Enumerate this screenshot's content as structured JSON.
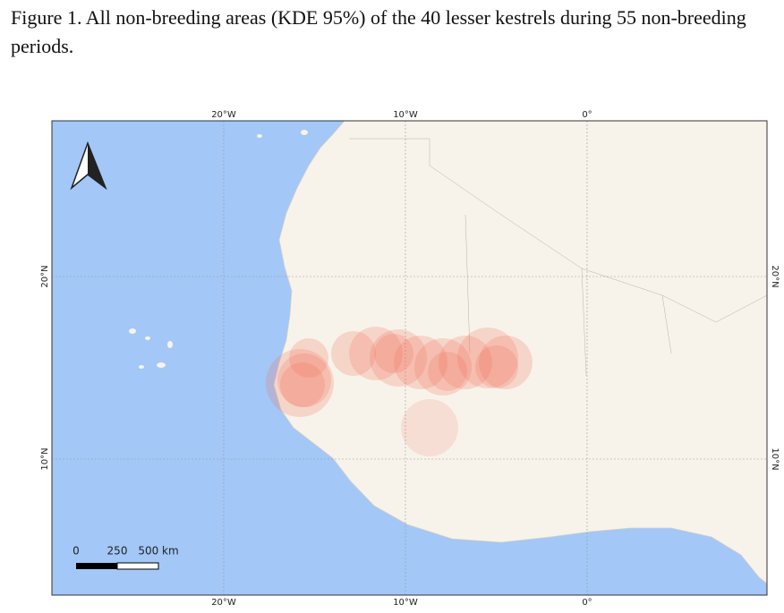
{
  "caption": "Figure 1. All non-breeding areas (KDE 95%) of the 40 lesser kestrels during 55 non-breeding periods.",
  "map": {
    "top_labels": [
      "20°W",
      "10°W",
      "0°"
    ],
    "bottom_labels": [
      "20°W",
      "10°W",
      "0°"
    ],
    "left_labels": [
      "20°N",
      "10°N"
    ],
    "right_labels": [
      "20°N",
      "10°N"
    ],
    "scale_bar": [
      "0",
      "250",
      "500 km"
    ]
  }
}
